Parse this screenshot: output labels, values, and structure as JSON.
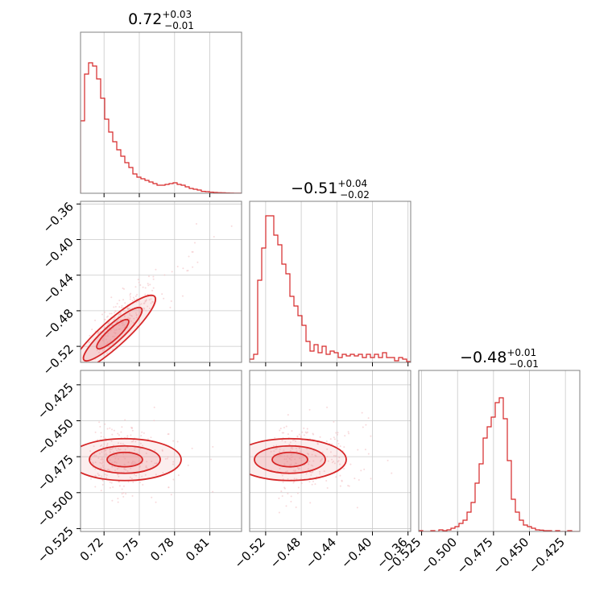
{
  "colors": {
    "accent": "#d62728",
    "fill_light": "#f4c2c4",
    "fill_mid": "#e88b8f",
    "grid": "#c8c8c8",
    "frame": "#808080"
  },
  "chart_data": {
    "type": "corner",
    "parameters": [
      {
        "title_value": "0.72",
        "title_plus": "+0.03",
        "title_minus": "−0.01",
        "range": [
          0.7,
          0.837
        ],
        "ticks": [
          0.72,
          0.75,
          0.78,
          0.81
        ],
        "tick_labels": [
          "0.72",
          "0.75",
          "0.78",
          "0.81"
        ],
        "histogram_peak": 0.706
      },
      {
        "title_value": "−0.51",
        "title_plus": "+0.04",
        "title_minus": "−0.02",
        "range": [
          -0.538,
          -0.357
        ],
        "ticks": [
          -0.52,
          -0.48,
          -0.44,
          -0.4,
          -0.36
        ],
        "tick_labels": [
          "−0.52",
          "−0.48",
          "−0.44",
          "−0.40",
          "−0.36"
        ],
        "histogram_peak": -0.517
      },
      {
        "title_value": "−0.48",
        "title_plus": "+0.01",
        "title_minus": "−0.01",
        "range": [
          -0.527,
          -0.415
        ],
        "ticks": [
          -0.525,
          -0.5,
          -0.475,
          -0.45,
          -0.425
        ],
        "tick_labels": [
          "−0.525",
          "−0.500",
          "−0.475",
          "−0.450",
          "−0.425"
        ],
        "histogram_peak": -0.477
      }
    ],
    "histograms": [
      [
        0.45,
        0.74,
        0.81,
        0.79,
        0.71,
        0.59,
        0.46,
        0.38,
        0.32,
        0.27,
        0.23,
        0.19,
        0.16,
        0.12,
        0.1,
        0.09,
        0.08,
        0.07,
        0.06,
        0.05,
        0.05,
        0.055,
        0.06,
        0.065,
        0.055,
        0.05,
        0.04,
        0.03,
        0.025,
        0.02,
        0.012,
        0.01,
        0.007,
        0.005,
        0.004,
        0.003,
        0.002,
        0.0015,
        0.001,
        0.0005
      ],
      [
        0.02,
        0.05,
        0.51,
        0.71,
        0.91,
        0.91,
        0.79,
        0.73,
        0.61,
        0.55,
        0.41,
        0.35,
        0.29,
        0.23,
        0.13,
        0.07,
        0.11,
        0.06,
        0.1,
        0.05,
        0.07,
        0.06,
        0.03,
        0.05,
        0.04,
        0.05,
        0.04,
        0.05,
        0.03,
        0.05,
        0.03,
        0.05,
        0.03,
        0.06,
        0.03,
        0.03,
        0.01,
        0.03,
        0.02,
        0.005
      ],
      [
        0.005,
        0,
        0,
        0.005,
        0,
        0.01,
        0.005,
        0.01,
        0.02,
        0.03,
        0.05,
        0.07,
        0.12,
        0.18,
        0.3,
        0.42,
        0.58,
        0.65,
        0.71,
        0.8,
        0.83,
        0.7,
        0.44,
        0.2,
        0.12,
        0.07,
        0.04,
        0.03,
        0.02,
        0.01,
        0.008,
        0.005,
        0.005,
        0,
        0.005,
        0,
        0,
        0.005,
        0,
        0
      ]
    ],
    "histogram_bins": 40,
    "contours": [
      {
        "pair": [
          1,
          0
        ],
        "slope": 1.15,
        "sigma": 0.02,
        "levels": [
          "16%",
          "50%",
          "84%"
        ]
      },
      {
        "pair": [
          2,
          0
        ],
        "centre": [
          0.706,
          -0.477
        ]
      },
      {
        "pair": [
          2,
          1
        ],
        "centre": [
          -0.517,
          -0.477
        ]
      }
    ],
    "grid": true,
    "scatter": "faint points outside contours"
  }
}
